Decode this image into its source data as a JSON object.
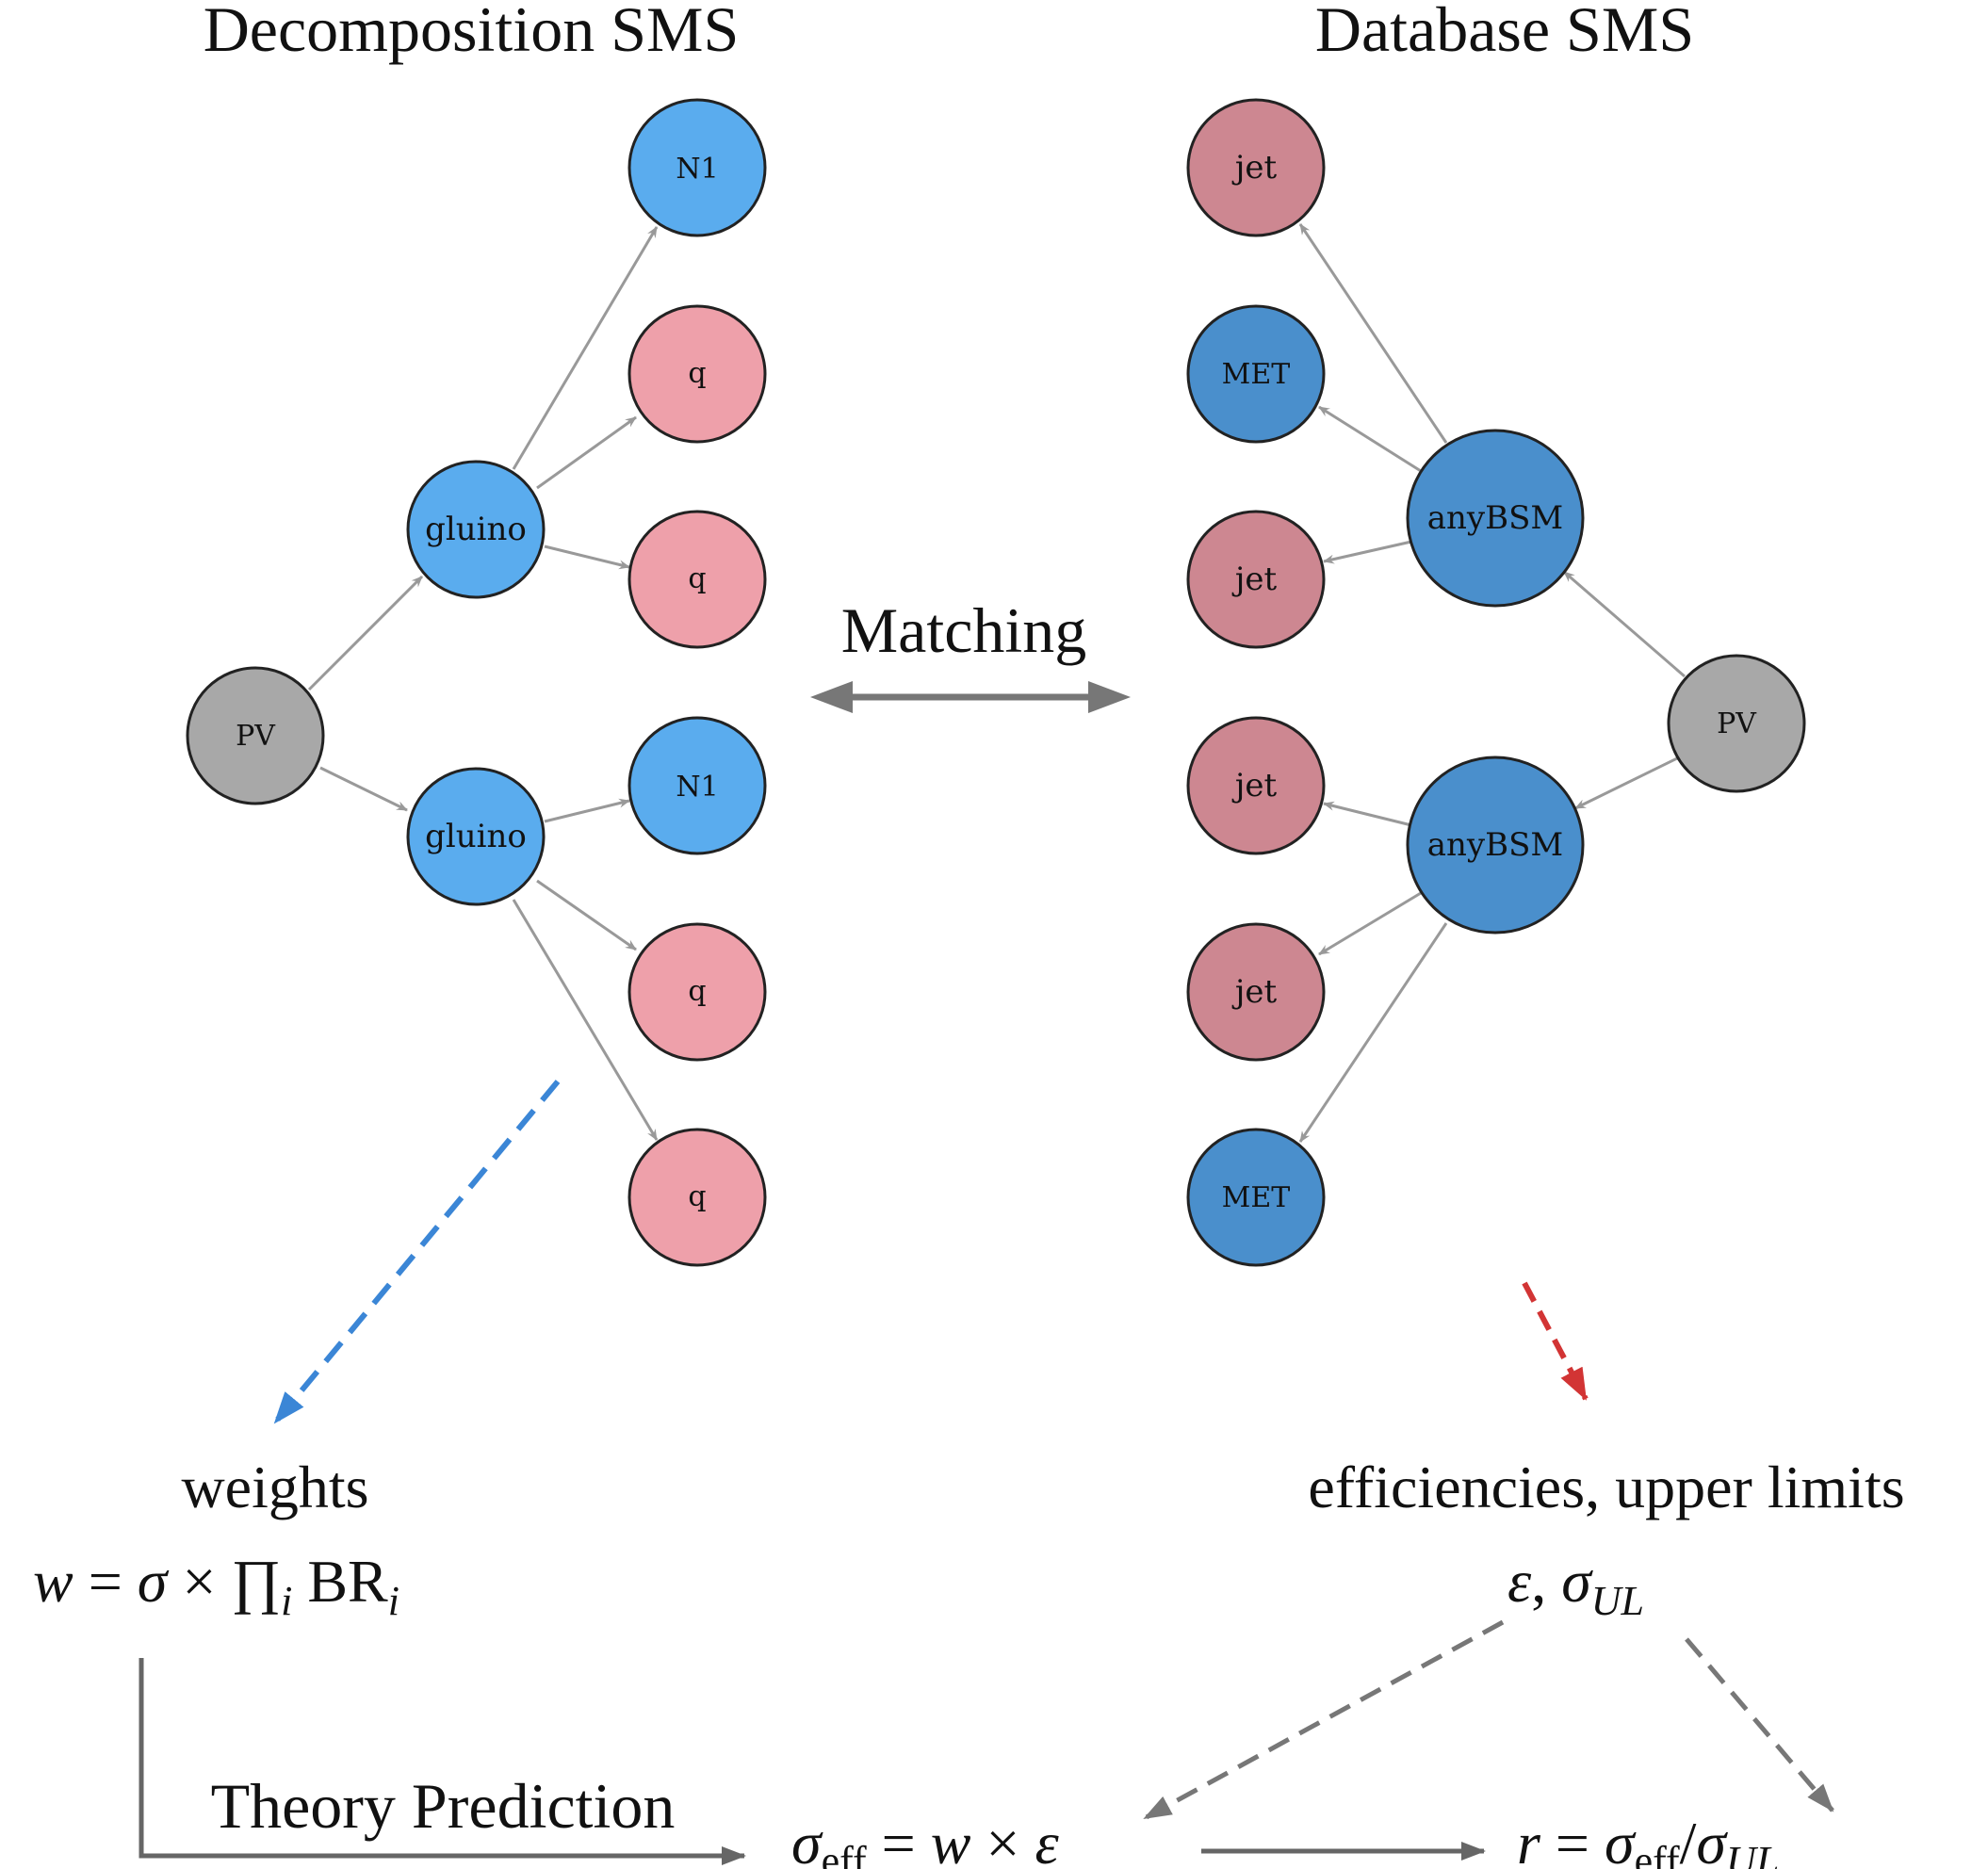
{
  "headings": {
    "left": "Decomposition SMS",
    "right": "Database SMS",
    "matching": "Matching",
    "theory_prediction": "Theory Prediction"
  },
  "left_tree": {
    "root": "PV",
    "branches": [
      {
        "mother": "gluino",
        "daughters": [
          "N1",
          "q",
          "q"
        ]
      },
      {
        "mother": "gluino",
        "daughters": [
          "N1",
          "q",
          "q"
        ]
      }
    ]
  },
  "right_tree": {
    "root": "PV",
    "branches": [
      {
        "mother": "anyBSM",
        "daughters": [
          "jet",
          "MET",
          "jet"
        ]
      },
      {
        "mother": "anyBSM",
        "daughters": [
          "jet",
          "jet",
          "MET"
        ]
      }
    ]
  },
  "outputs": {
    "weights_label": "weights",
    "weights_formula": {
      "w": "w",
      "eq": " = ",
      "sigma": "σ",
      "times": " × ",
      "prod": "∏",
      "i": "i",
      "br": " BR"
    },
    "eff_label": "efficiencies, upper limits",
    "eff_formula": {
      "eps": "ε",
      "comma": ", ",
      "sigma": "σ",
      "ul": "UL"
    },
    "sigma_eff_formula": {
      "sigma": "σ",
      "eff": "eff",
      "eq": " = ",
      "w": "w",
      "times": " × ",
      "eps": "ε"
    },
    "r_formula": {
      "r": "r",
      "eq": " = ",
      "sigma": "σ",
      "eff": "eff",
      "slash": "/",
      "ul": "UL"
    }
  },
  "colors": {
    "pv": "#a8a8a8",
    "left_bsm": "#5aacee",
    "left_sm": "#eea0aa",
    "right_bsm": "#4a8fcc",
    "right_sm": "#cd8791",
    "edge": "#999999",
    "blue_arrow": "#3b86d6",
    "red_arrow": "#d23434",
    "flow": "#666666"
  }
}
